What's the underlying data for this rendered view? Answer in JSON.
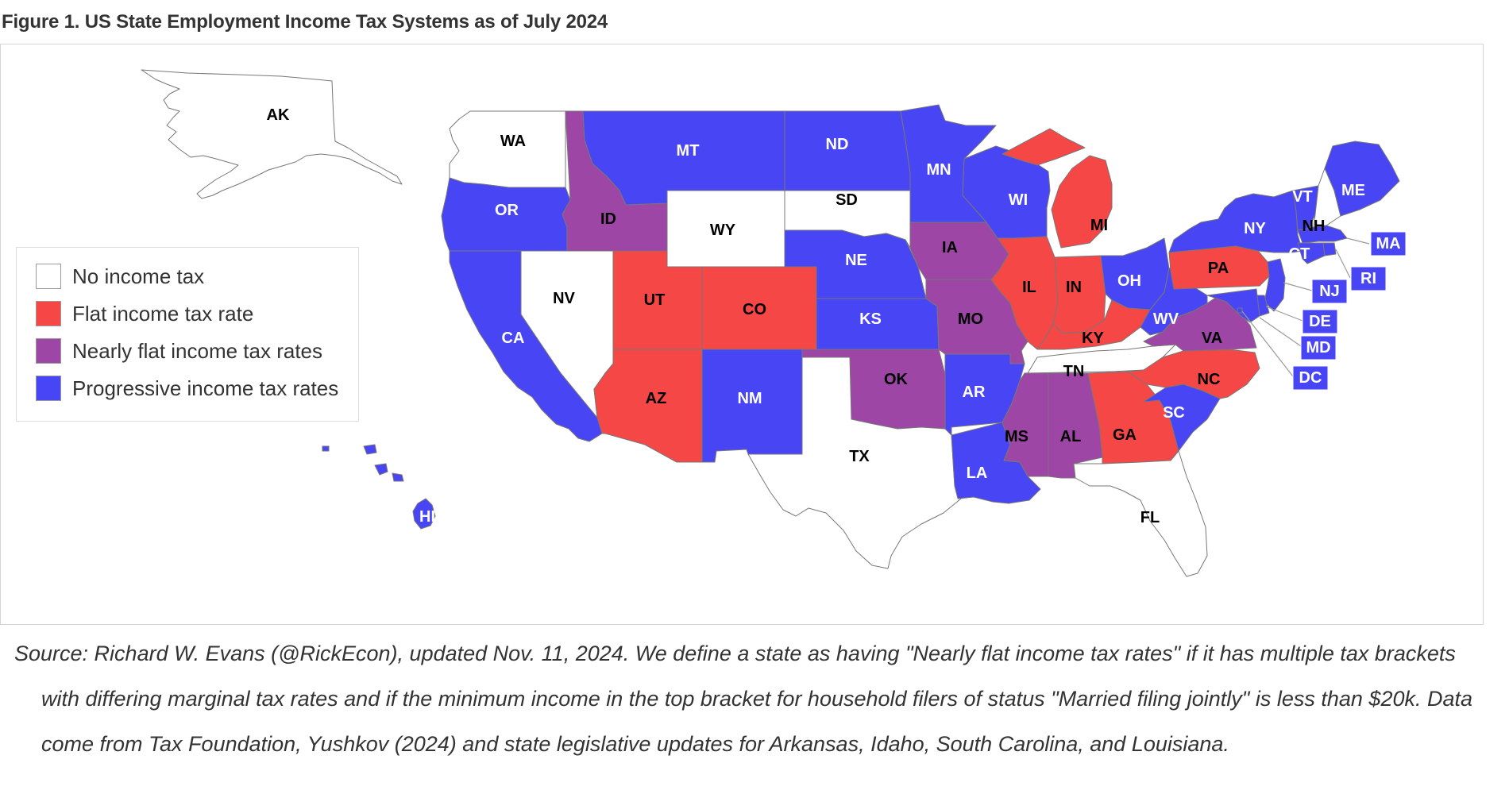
{
  "title": "Figure 1. US State Employment Income Tax Systems as of July 2024",
  "colors": {
    "none": "#ffffff",
    "flat": "#f64747",
    "nearly_flat": "#9d46a6",
    "progressive": "#4845f4"
  },
  "legend": [
    {
      "category": "none",
      "label": "No income tax"
    },
    {
      "category": "flat",
      "label": "Flat income tax rate"
    },
    {
      "category": "nearly_flat",
      "label": "Nearly flat income tax rates"
    },
    {
      "category": "progressive",
      "label": "Progressive income tax rates"
    }
  ],
  "states": [
    {
      "abbr": "AK",
      "category": "none"
    },
    {
      "abbr": "WA",
      "category": "none"
    },
    {
      "abbr": "OR",
      "category": "progressive"
    },
    {
      "abbr": "CA",
      "category": "progressive"
    },
    {
      "abbr": "NV",
      "category": "none"
    },
    {
      "abbr": "ID",
      "category": "nearly_flat"
    },
    {
      "abbr": "MT",
      "category": "progressive"
    },
    {
      "abbr": "WY",
      "category": "none"
    },
    {
      "abbr": "UT",
      "category": "flat"
    },
    {
      "abbr": "CO",
      "category": "flat"
    },
    {
      "abbr": "AZ",
      "category": "flat"
    },
    {
      "abbr": "NM",
      "category": "progressive"
    },
    {
      "abbr": "ND",
      "category": "progressive"
    },
    {
      "abbr": "SD",
      "category": "none"
    },
    {
      "abbr": "NE",
      "category": "progressive"
    },
    {
      "abbr": "KS",
      "category": "progressive"
    },
    {
      "abbr": "OK",
      "category": "nearly_flat"
    },
    {
      "abbr": "TX",
      "category": "none"
    },
    {
      "abbr": "MN",
      "category": "progressive"
    },
    {
      "abbr": "IA",
      "category": "nearly_flat"
    },
    {
      "abbr": "MO",
      "category": "nearly_flat"
    },
    {
      "abbr": "AR",
      "category": "progressive"
    },
    {
      "abbr": "LA",
      "category": "progressive"
    },
    {
      "abbr": "WI",
      "category": "progressive"
    },
    {
      "abbr": "IL",
      "category": "flat"
    },
    {
      "abbr": "MI",
      "category": "flat"
    },
    {
      "abbr": "IN",
      "category": "flat"
    },
    {
      "abbr": "OH",
      "category": "progressive"
    },
    {
      "abbr": "KY",
      "category": "flat"
    },
    {
      "abbr": "TN",
      "category": "none"
    },
    {
      "abbr": "MS",
      "category": "nearly_flat"
    },
    {
      "abbr": "AL",
      "category": "nearly_flat"
    },
    {
      "abbr": "GA",
      "category": "flat"
    },
    {
      "abbr": "FL",
      "category": "none"
    },
    {
      "abbr": "SC",
      "category": "progressive"
    },
    {
      "abbr": "NC",
      "category": "flat"
    },
    {
      "abbr": "VA",
      "category": "nearly_flat"
    },
    {
      "abbr": "WV",
      "category": "progressive"
    },
    {
      "abbr": "PA",
      "category": "flat"
    },
    {
      "abbr": "NY",
      "category": "progressive"
    },
    {
      "abbr": "VT",
      "category": "progressive"
    },
    {
      "abbr": "NH",
      "category": "none"
    },
    {
      "abbr": "ME",
      "category": "progressive"
    },
    {
      "abbr": "MA",
      "category": "progressive"
    },
    {
      "abbr": "RI",
      "category": "progressive"
    },
    {
      "abbr": "CT",
      "category": "progressive"
    },
    {
      "abbr": "NJ",
      "category": "progressive"
    },
    {
      "abbr": "DE",
      "category": "progressive"
    },
    {
      "abbr": "MD",
      "category": "progressive"
    },
    {
      "abbr": "DC",
      "category": "progressive"
    },
    {
      "abbr": "HI",
      "category": "progressive"
    }
  ],
  "caption": "Source: Richard W. Evans (@RickEcon), updated Nov. 11, 2024. We define a state as having \"Nearly flat income tax rates\" if it has multiple tax brackets with differing marginal tax rates and if the minimum income in the top bracket for household filers of status \"Married filing jointly\" is less than $20k. Data come from Tax Foundation, Yushkov (2024) and state legislative updates for Arkansas, Idaho, South Carolina, and Louisiana."
}
